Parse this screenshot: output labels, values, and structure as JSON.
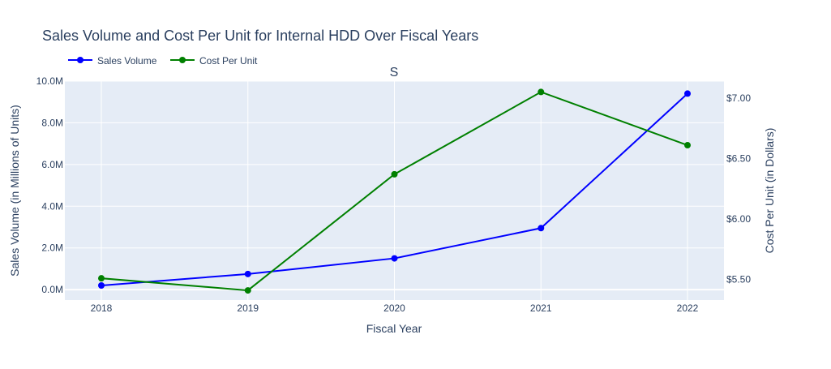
{
  "chart_data": {
    "type": "line",
    "title": "Sales Volume and Cost Per Unit for Internal HDD Over Fiscal Years",
    "subtitle": "S",
    "xlabel": "Fiscal Year",
    "ylabel": "Sales Volume (in Millions of Units)",
    "y2label": "Cost Per Unit (in Dollars)",
    "categories": [
      "2018",
      "2019",
      "2020",
      "2021",
      "2022"
    ],
    "ylim": [
      -0.5,
      10.0
    ],
    "y2lim": [
      5.33,
      7.14
    ],
    "yticks": [
      0,
      2,
      4,
      6,
      8,
      10
    ],
    "ytick_labels": [
      "0.0M",
      "2.0M",
      "4.0M",
      "6.0M",
      "8.0M",
      "10.0M"
    ],
    "y2ticks": [
      5.5,
      6.0,
      6.5,
      7.0
    ],
    "y2tick_labels": [
      "$5.50",
      "$6.00",
      "$6.50",
      "$7.00"
    ],
    "grid": true,
    "legend_position": "top-left",
    "series": [
      {
        "name": "Sales Volume",
        "axis": "left",
        "color": "#0000ff",
        "values": [
          0.2,
          0.75,
          1.5,
          2.95,
          9.4
        ]
      },
      {
        "name": "Cost Per Unit",
        "axis": "right",
        "color": "#008000",
        "values": [
          5.51,
          5.41,
          6.37,
          7.05,
          6.61
        ]
      }
    ]
  },
  "colors": {
    "plot_background": "#e5ecf6",
    "grid": "#ffffff",
    "text": "#2a3f5f"
  }
}
